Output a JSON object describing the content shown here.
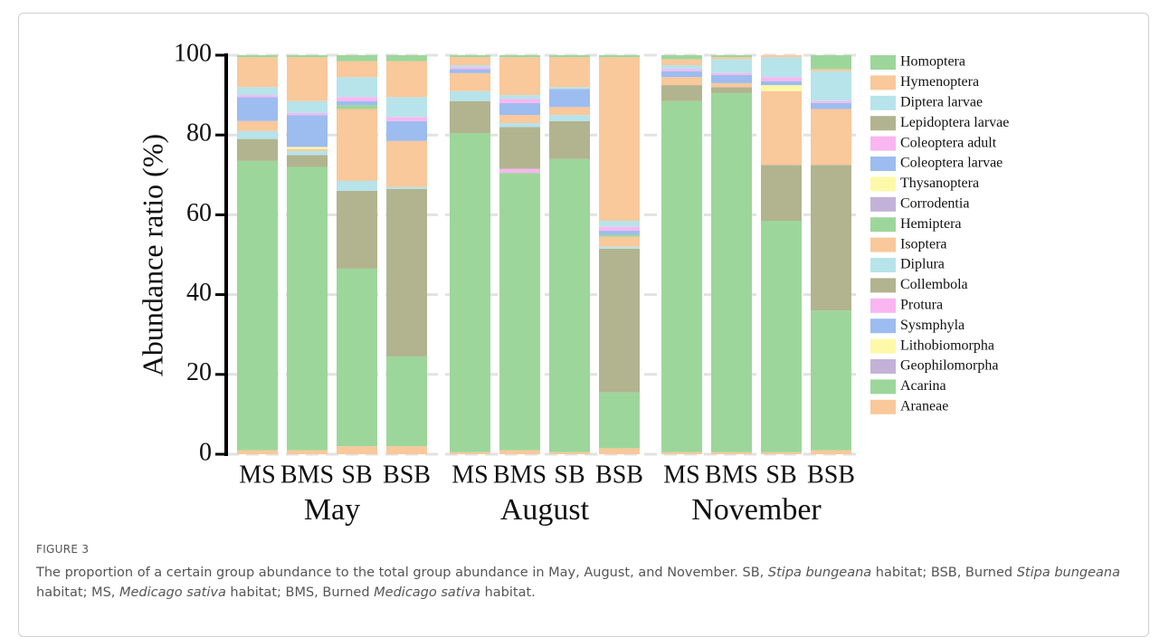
{
  "chart_data": {
    "type": "stacked-bar",
    "ylabel": "Abundance ratio (%)",
    "categories": [
      "MS",
      "BMS",
      "SB",
      "BSB",
      "MS",
      "BMS",
      "SB",
      "BSB",
      "MS",
      "BMS",
      "SB",
      "BSB"
    ],
    "groups": [
      "May",
      "August",
      "November"
    ],
    "ylim": [
      0,
      100
    ],
    "yticks": [
      0,
      20,
      40,
      60,
      80,
      100
    ],
    "grid": true,
    "series": [
      {
        "name": "Araneae",
        "color": "#f9c89b",
        "values": [
          1,
          1,
          2,
          2,
          0.5,
          1,
          0.5,
          1.5,
          0.5,
          0.5,
          0.5,
          1
        ]
      },
      {
        "name": "Acarina",
        "color": "#9dd69b",
        "values": [
          72.5,
          71,
          44.5,
          22.5,
          80,
          69.5,
          73.5,
          14,
          88,
          90,
          58,
          35
        ]
      },
      {
        "name": "Geophilomorpha",
        "color": "#c3b2d8",
        "values": [
          0,
          0,
          0,
          0,
          0,
          0,
          0,
          0,
          0,
          0,
          0,
          0
        ]
      },
      {
        "name": "Lithobiomorpha",
        "color": "#fdf9a8",
        "values": [
          0,
          0,
          0,
          0,
          0,
          0,
          0,
          0,
          0,
          0,
          0,
          0
        ]
      },
      {
        "name": "Sysmphyla",
        "color": "#9dbcef",
        "values": [
          0,
          0,
          0,
          0,
          0,
          0,
          0,
          0,
          0,
          0,
          0,
          0
        ]
      },
      {
        "name": "Protura",
        "color": "#f9b6f0",
        "values": [
          0,
          0,
          0,
          0,
          0,
          1,
          0,
          0,
          0,
          0,
          0,
          0
        ]
      },
      {
        "name": "Collembola",
        "color": "#b1b48f",
        "values": [
          5.5,
          3,
          19.5,
          42,
          8,
          10.5,
          9.5,
          36,
          4,
          1.5,
          14,
          36.5
        ]
      },
      {
        "name": "Diplura",
        "color": "#b7e3ea",
        "values": [
          2,
          1,
          2.5,
          0.5,
          2.5,
          1,
          1.5,
          0.5,
          0,
          0,
          0,
          0
        ]
      },
      {
        "name": "Isoptera",
        "color": "#f9c89b",
        "values": [
          2.5,
          0.5,
          18,
          11.5,
          4.5,
          2,
          2,
          2.5,
          2,
          1,
          18.5,
          14
        ]
      },
      {
        "name": "Hemiptera",
        "color": "#9dd69b",
        "values": [
          0,
          0,
          1,
          0,
          0,
          0,
          0,
          0.5,
          0,
          0,
          0,
          0
        ]
      },
      {
        "name": "Corrodentia",
        "color": "#c3b2d8",
        "values": [
          0,
          0,
          0,
          0,
          0,
          0,
          0,
          0,
          0,
          0,
          0,
          0
        ]
      },
      {
        "name": "Thysanoptera",
        "color": "#fdf9a8",
        "values": [
          0,
          0.5,
          0,
          0,
          0,
          0,
          0,
          0,
          0,
          0,
          1.5,
          0
        ]
      },
      {
        "name": "Coleoptera larvae",
        "color": "#9dbcef",
        "values": [
          6,
          8,
          1,
          5,
          1,
          3,
          4.5,
          1,
          1.5,
          2,
          1,
          1.5
        ]
      },
      {
        "name": "Coleoptera adult",
        "color": "#f9b6f0",
        "values": [
          0.5,
          0.5,
          1,
          1,
          0.5,
          1,
          0,
          1,
          0.5,
          0.5,
          1,
          0.5
        ]
      },
      {
        "name": "Lepidoptera larvae",
        "color": "#b1b48f",
        "values": [
          0,
          0,
          0,
          0,
          0,
          0,
          0,
          0,
          0,
          0,
          0,
          0
        ]
      },
      {
        "name": "Diptera larvae",
        "color": "#b7e3ea",
        "values": [
          2,
          3,
          5,
          5,
          0.5,
          1,
          0.5,
          1.5,
          1,
          3.5,
          5,
          7.5
        ]
      },
      {
        "name": "Hymenoptera",
        "color": "#f9c89b",
        "values": [
          7.5,
          11,
          4,
          9,
          2,
          9.5,
          7.5,
          41,
          1.5,
          0.5,
          0.5,
          0.5
        ]
      },
      {
        "name": "Homoptera",
        "color": "#9dd69b",
        "values": [
          0.5,
          0.5,
          1.5,
          1.5,
          0.5,
          0.5,
          0.5,
          0.5,
          1,
          0.5,
          0,
          3.5
        ]
      }
    ]
  },
  "figure_label": "FIGURE 3",
  "caption": [
    {
      "text": "The proportion of a certain group abundance to the total group abundance in May, August, and November. SB, ",
      "italic": false
    },
    {
      "text": "Stipa bungeana",
      "italic": true
    },
    {
      "text": " habitat; BSB, Burned ",
      "italic": false
    },
    {
      "text": "Stipa bungeana",
      "italic": true
    },
    {
      "text": " habitat; MS, ",
      "italic": false
    },
    {
      "text": "Medicago sativa",
      "italic": true
    },
    {
      "text": " habitat; BMS, Burned ",
      "italic": false
    },
    {
      "text": "Medicago sativa",
      "italic": true
    },
    {
      "text": " habitat.",
      "italic": false
    }
  ]
}
